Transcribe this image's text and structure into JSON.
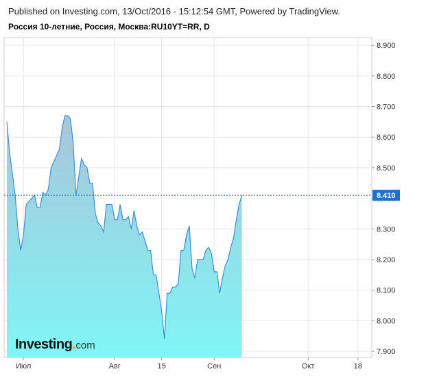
{
  "header": {
    "published": "Published on Investing.com, 13/Oct/2016 - 15:12:54 GMT, Powered by TradingView.",
    "symbol": "Россия 10-летние, Россия, Москва:RU10YT=RR, D"
  },
  "logo": {
    "name": "Investing",
    "dot": ".",
    "suffix": "com"
  },
  "colors": {
    "line": "#3a8fd9",
    "fill_top": "#a9c5d9",
    "fill_bottom": "#7ff6f6",
    "last_label_bg": "#1f6fd1",
    "grid": "#e6e6e6"
  },
  "chart_data": {
    "type": "area",
    "title": "",
    "xlabel": "",
    "ylabel": "",
    "ylim": [
      7.88,
      8.925
    ],
    "y_ticks": [
      "8.900",
      "8.800",
      "8.700",
      "8.600",
      "8.500",
      "8.400",
      "8.300",
      "8.200",
      "8.100",
      "8.000",
      "7.900"
    ],
    "x_ticks": [
      {
        "index": 6,
        "label": "Июл"
      },
      {
        "index": 39,
        "label": "Авг"
      },
      {
        "index": 56,
        "label": "15"
      },
      {
        "index": 75,
        "label": "Сен"
      },
      {
        "index": 109,
        "label": "Окт"
      },
      {
        "index": 127,
        "label": "18"
      }
    ],
    "last_value_label": "8.410",
    "last_value": 8.41,
    "values": [
      8.65,
      8.55,
      8.48,
      8.41,
      8.3,
      8.23,
      8.28,
      8.38,
      8.39,
      8.4,
      8.41,
      8.37,
      8.37,
      8.42,
      8.41,
      8.43,
      8.5,
      8.52,
      8.54,
      8.56,
      8.63,
      8.67,
      8.67,
      8.66,
      8.58,
      8.41,
      8.47,
      8.53,
      8.51,
      8.5,
      8.45,
      8.45,
      8.35,
      8.32,
      8.31,
      8.29,
      8.38,
      8.38,
      8.38,
      8.33,
      8.33,
      8.38,
      8.33,
      8.33,
      8.34,
      8.3,
      8.36,
      8.31,
      8.28,
      8.29,
      8.26,
      8.23,
      8.23,
      8.15,
      8.15,
      8.09,
      8.03,
      7.94,
      8.09,
      8.09,
      8.11,
      8.11,
      8.12,
      8.23,
      8.23,
      8.28,
      8.31,
      8.17,
      8.14,
      8.2,
      8.2,
      8.2,
      8.23,
      8.24,
      8.22,
      8.16,
      8.16,
      8.09,
      8.14,
      8.18,
      8.2,
      8.24,
      8.27,
      8.33,
      8.38,
      8.41
    ],
    "grid": true,
    "legend": "none"
  }
}
